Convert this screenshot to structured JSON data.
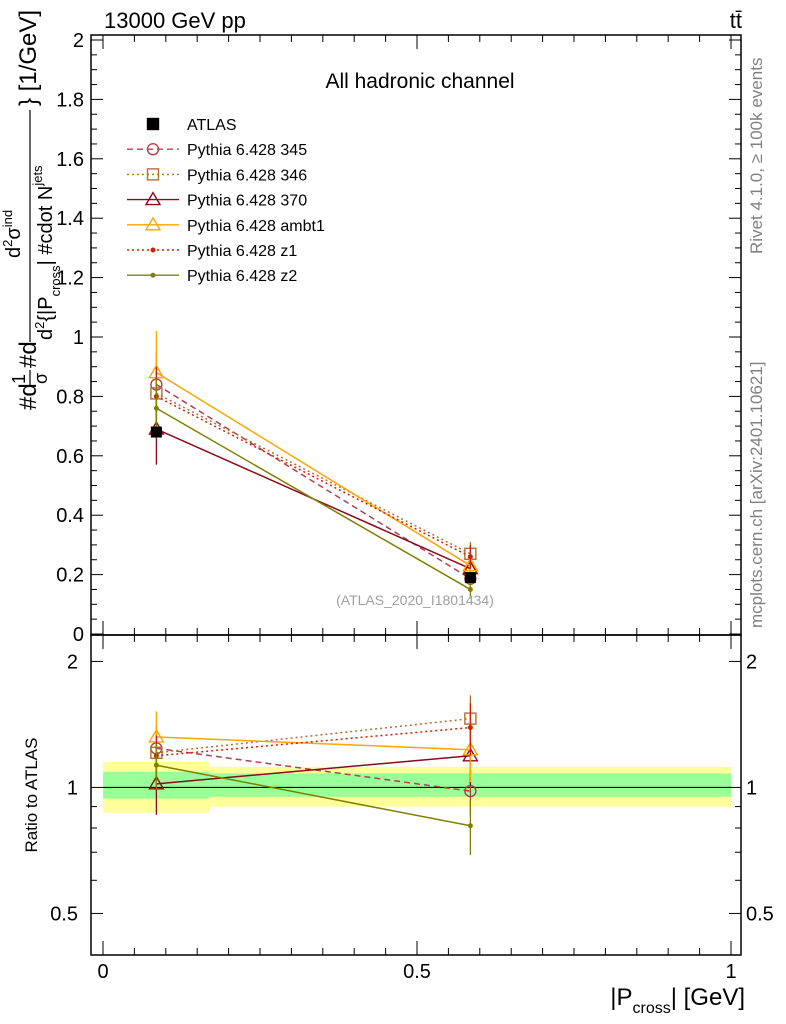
{
  "header": {
    "energy_label": "13000 GeV pp",
    "process_label": "tt̄"
  },
  "side_labels": {
    "rivet": "Rivet 4.1.0, ≥ 100k events",
    "mcplots": "mcplots.cern.ch [arXiv:2401.10621]"
  },
  "chart_data": {
    "type": "line",
    "title": "All hadronic channel",
    "watermark": "(ATLAS_2020_I1801434)",
    "ylabel_parts": {
      "prefix": "#d",
      "frac_num": "1",
      "frac_den": "σ",
      "mid": "#d",
      "num": "d",
      "num_sup": "2",
      "num_sym": "σ",
      "num_sub": "ind",
      "den_d": "d",
      "den_sup": "2",
      "den_text": "{|P",
      "den_sub": "cross",
      "den_text2": "| #cdot N",
      "den_sub2": "jets",
      "suffix": "} [1/GeV]"
    },
    "xlabel": {
      "pre": "|P",
      "sub": "cross",
      "post": "| [GeV]"
    },
    "ratio_ylabel": "Ratio to ATLAS",
    "xlim": [
      0,
      1
    ],
    "ylim": [
      0,
      2
    ],
    "ratio_ylim": [
      0.4,
      2.3
    ],
    "x_ticks": [
      "0",
      "0.5",
      "1"
    ],
    "y_ticks": [
      "0",
      "0.2",
      "0.4",
      "0.6",
      "0.8",
      "1",
      "1.2",
      "1.4",
      "1.6",
      "1.8",
      "2"
    ],
    "ratio_ticks": [
      "0.5",
      "1",
      "2"
    ],
    "bins": [
      {
        "lo": 0.0,
        "hi": 0.17,
        "center": 0.085
      },
      {
        "lo": 0.17,
        "hi": 1.0,
        "center": 0.585
      }
    ],
    "data": {
      "name": "ATLAS",
      "color": "#000000",
      "values": [
        0.68,
        0.19
      ],
      "band_inner": [
        [
          0.94,
          1.09
        ],
        [
          0.95,
          1.08
        ]
      ],
      "band_outer": [
        [
          0.87,
          1.15
        ],
        [
          0.9,
          1.12
        ]
      ]
    },
    "series": [
      {
        "name": "Pythia 6.428 345",
        "color": "#B04050",
        "dash": "6,4",
        "marker": "circle",
        "values": [
          0.84,
          0.186
        ],
        "errors": [
          0.11,
          0.03
        ],
        "ratio": [
          1.24,
          0.98
        ],
        "ratio_err": [
          0.16,
          0.12
        ]
      },
      {
        "name": "Pythia 6.428 346",
        "color": "#B07030",
        "dash": "2,3",
        "marker": "square",
        "values": [
          0.81,
          0.27
        ],
        "errors": [
          0.1,
          0.04
        ],
        "ratio": [
          1.21,
          1.46
        ],
        "ratio_err": [
          0.15,
          0.2
        ]
      },
      {
        "name": "Pythia 6.428 370",
        "color": "#8B0A1E",
        "dash": "",
        "marker": "triangle",
        "values": [
          0.69,
          0.22
        ],
        "errors": [
          0.12,
          0.04
        ],
        "ratio": [
          1.02,
          1.19
        ],
        "ratio_err": [
          0.16,
          0.18
        ]
      },
      {
        "name": "Pythia 6.428 ambt1",
        "color": "#FFA500",
        "dash": "",
        "marker": "triangle",
        "values": [
          0.88,
          0.23
        ],
        "errors": [
          0.14,
          0.04
        ],
        "ratio": [
          1.32,
          1.23
        ],
        "ratio_err": [
          0.2,
          0.2
        ]
      },
      {
        "name": "Pythia 6.428 z1",
        "color": "#CC2200",
        "dash": "2,3",
        "marker": "dot",
        "values": [
          0.8,
          0.26
        ],
        "errors": [
          0.1,
          0.04
        ],
        "ratio": [
          1.19,
          1.39
        ],
        "ratio_err": [
          0.14,
          0.2
        ]
      },
      {
        "name": "Pythia 6.428 z2",
        "color": "#808000",
        "dash": "",
        "marker": "dot",
        "values": [
          0.76,
          0.15
        ],
        "errors": [
          0.1,
          0.03
        ],
        "ratio": [
          1.13,
          0.81
        ],
        "ratio_err": [
          0.14,
          0.12
        ]
      }
    ]
  }
}
